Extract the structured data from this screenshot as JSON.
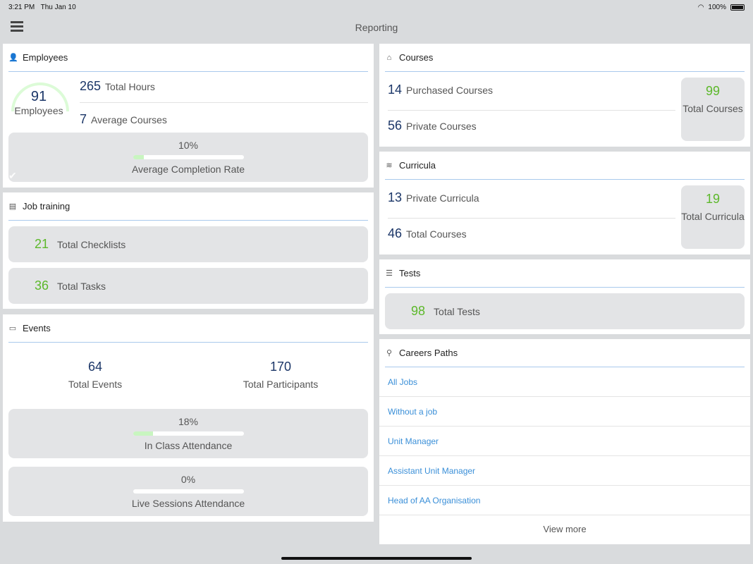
{
  "status_bar": {
    "time": "3:21 PM",
    "date": "Thu Jan 10",
    "battery": "100%"
  },
  "header": {
    "title": "Reporting"
  },
  "colors": {
    "number": "#1b3668",
    "accent_green": "#5cb82a",
    "link": "#3a8fd8",
    "divider": "#a9c9ec"
  },
  "employees": {
    "title": "Employees",
    "icon": "user-icon",
    "count": "91",
    "count_label": "Employees",
    "total_hours": "265",
    "total_hours_label": "Total Hours",
    "avg_courses": "7",
    "avg_courses_label": "Average Courses",
    "completion_rate": "10%",
    "completion_rate_value": 10,
    "completion_label": "Average Completion Rate"
  },
  "job_training": {
    "title": "Job training",
    "icon": "clipboard-icon",
    "checklists": "21",
    "checklists_label": "Total Checklists",
    "tasks": "36",
    "tasks_label": "Total Tasks"
  },
  "events": {
    "title": "Events",
    "icon": "calendar-icon",
    "total_events": "64",
    "total_events_label": "Total Events",
    "total_participants": "170",
    "total_participants_label": "Total Participants",
    "in_class": "18%",
    "in_class_value": 18,
    "in_class_label": "In Class Attendance",
    "live": "0%",
    "live_value": 0,
    "live_label": "Live Sessions Attendance"
  },
  "courses": {
    "title": "Courses",
    "icon": "library-icon",
    "purchased": "14",
    "purchased_label": "Purchased Courses",
    "private": "56",
    "private_label": "Private Courses",
    "total": "99",
    "total_label": "Total Courses"
  },
  "curricula": {
    "title": "Curricula",
    "icon": "books-icon",
    "private": "13",
    "private_label": "Private Curricula",
    "total_courses": "46",
    "total_courses_label": "Total Courses",
    "total": "19",
    "total_label": "Total Curricula"
  },
  "tests": {
    "title": "Tests",
    "icon": "test-icon",
    "total": "98",
    "total_label": "Total Tests"
  },
  "careers": {
    "title": "Careers Paths",
    "icon": "career-icon",
    "items": [
      "All Jobs",
      "Without a job",
      "Unit Manager",
      "Assistant Unit Manager",
      "Head of AA Organisation"
    ],
    "view_more": "View more"
  }
}
